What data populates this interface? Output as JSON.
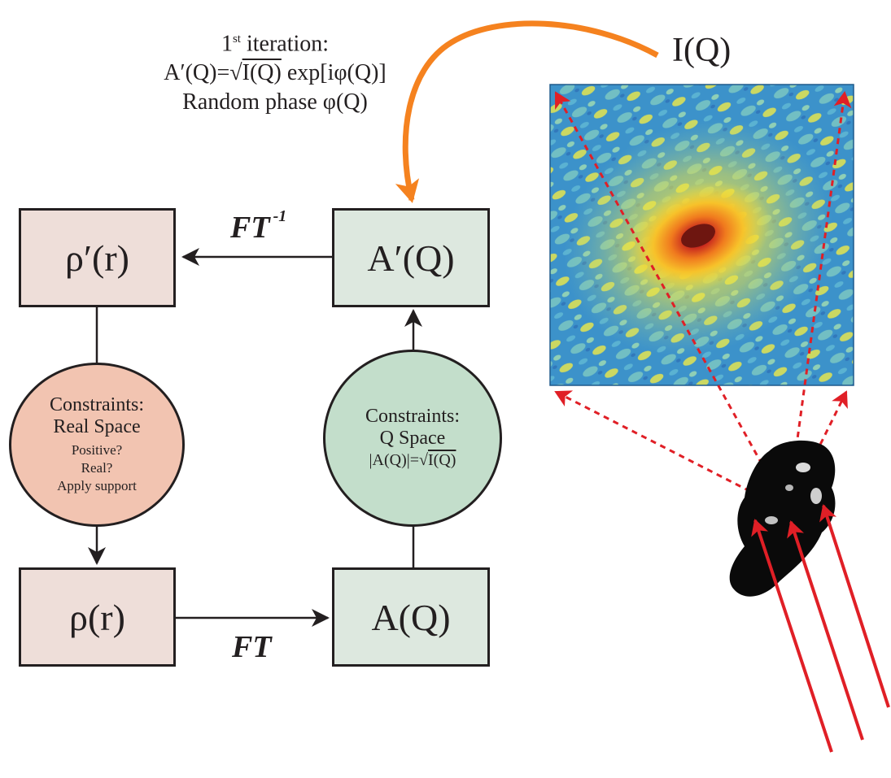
{
  "note": {
    "iteration_number": "1",
    "iteration_suffix": "st",
    "iteration_word": " iteration:",
    "formula_left": "A′(Q)=√",
    "formula_sqrt": "I(Q)",
    "formula_right": " exp[iφ(Q)]",
    "random_phase": "Random phase φ(Q)"
  },
  "boxes": {
    "rho_prime": "ρ′(r)",
    "a_prime": "A′(Q)",
    "rho": "ρ(r)",
    "a": "A(Q)"
  },
  "arrows": {
    "inverse_ft": "FT",
    "inverse_ft_exp": "-1",
    "ft": "FT"
  },
  "real_constraints": {
    "title_line1": "Constraints:",
    "title_line2": "Real Space",
    "items": [
      "Positive?",
      "Real?",
      "Apply support"
    ]
  },
  "q_constraints": {
    "title_line1": "Constraints:",
    "title_line2": "Q Space",
    "formula_left": "|A(Q)|=√",
    "formula_sqrt": "I(Q)"
  },
  "intensity_label": "I(Q)",
  "colors": {
    "real_box": "#eeded9",
    "q_box": "#dde8df",
    "real_circle": "#f2c4b1",
    "q_circle": "#c3decb",
    "feedback_arrow": "#f5821f",
    "beam": "#e01f26",
    "pattern_bg": "#3a8fc8",
    "pattern_mid": "#f2e23a",
    "pattern_hot": "#c8281e"
  }
}
